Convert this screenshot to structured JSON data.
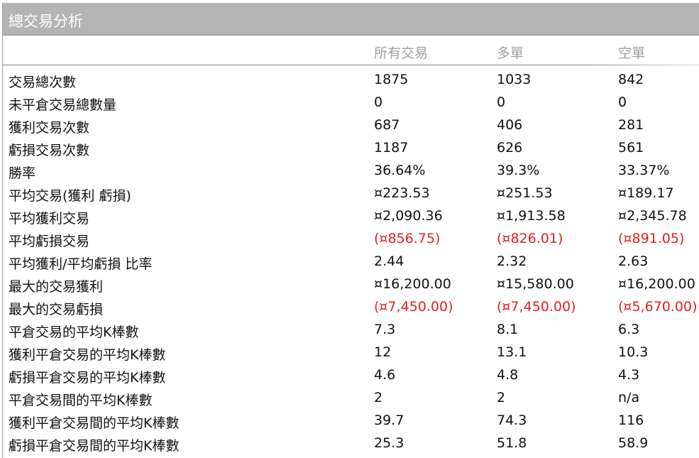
{
  "title": "總交易分析",
  "columns": [
    "所有交易",
    "多單",
    "空單"
  ],
  "colors": {
    "negative": "#e0201c",
    "header_bg": "#b4b4b4",
    "column_header": "#a0a0a0"
  },
  "rows": [
    {
      "label": "交易總次數",
      "values": [
        "1875",
        "1033",
        "842"
      ],
      "negative": false
    },
    {
      "label": "未平倉交易總數量",
      "values": [
        "0",
        "0",
        "0"
      ],
      "negative": false
    },
    {
      "label": "獲利交易次數",
      "values": [
        "687",
        "406",
        "281"
      ],
      "negative": false
    },
    {
      "label": "虧損交易次數",
      "values": [
        "1187",
        "626",
        "561"
      ],
      "negative": false
    },
    {
      "label": "勝率",
      "values": [
        "36.64%",
        "39.3%",
        "33.37%"
      ],
      "negative": false
    },
    {
      "label": "平均交易(獲利  虧損)",
      "values": [
        "¤223.53",
        "¤251.53",
        "¤189.17"
      ],
      "negative": false
    },
    {
      "label": "平均獲利交易",
      "values": [
        "¤2,090.36",
        "¤1,913.58",
        "¤2,345.78"
      ],
      "negative": false
    },
    {
      "label": "平均虧損交易",
      "values": [
        "(¤856.75)",
        "(¤826.01)",
        "(¤891.05)"
      ],
      "negative": true
    },
    {
      "label": "平均獲利/平均虧損  比率",
      "values": [
        "2.44",
        "2.32",
        "2.63"
      ],
      "negative": false
    },
    {
      "label": "最大的交易獲利",
      "values": [
        "¤16,200.00",
        "¤15,580.00",
        "¤16,200.00"
      ],
      "negative": false
    },
    {
      "label": "最大的交易虧損",
      "values": [
        "(¤7,450.00)",
        "(¤7,450.00)",
        "(¤5,670.00)"
      ],
      "negative": true
    },
    {
      "label": "平倉交易的平均K棒數",
      "values": [
        "7.3",
        "8.1",
        "6.3"
      ],
      "negative": false
    },
    {
      "label": "獲利平倉交易的平均K棒數",
      "values": [
        "12",
        "13.1",
        "10.3"
      ],
      "negative": false
    },
    {
      "label": "虧損平倉交易的平均K棒數",
      "values": [
        "4.6",
        "4.8",
        "4.3"
      ],
      "negative": false
    },
    {
      "label": "平倉交易間的平均K棒數",
      "values": [
        "2",
        "2",
        "n/a"
      ],
      "negative": false
    },
    {
      "label": "獲利平倉交易間的平均K棒數",
      "values": [
        "39.7",
        "74.3",
        "116"
      ],
      "negative": false
    },
    {
      "label": "虧損平倉交易間的平均K棒數",
      "values": [
        "25.3",
        "51.8",
        "58.9"
      ],
      "negative": false
    }
  ]
}
